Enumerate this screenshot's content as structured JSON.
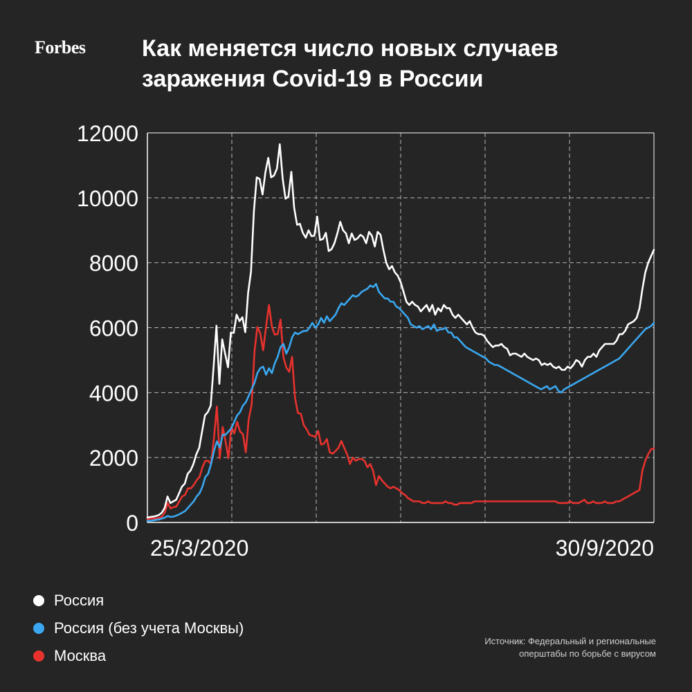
{
  "logo": "Forbes",
  "title": {
    "line1": "Как меняется число новых случаев",
    "line2": "заражения Covid-19 в России"
  },
  "legend": [
    {
      "label": "Россия",
      "color": "#ffffff"
    },
    {
      "label": "Россия (без учета Москвы)",
      "color": "#3aa8f0"
    },
    {
      "label": "Москва",
      "color": "#e8322e"
    }
  ],
  "source": {
    "line1": "Источник: Федеральный и региональные",
    "line2": "оперштабы по борьбе с вирусом"
  },
  "chart_data": {
    "type": "line",
    "ylim": [
      0,
      12000
    ],
    "yticks": [
      "0",
      "2000",
      "4000",
      "6000",
      "8000",
      "10000",
      "12000"
    ],
    "xticks": [
      "25/3/2020",
      "30/9/2020"
    ],
    "x_start": "2020-03-25",
    "x_end": "2020-09-30",
    "grid": true,
    "series": [
      {
        "name": "Россия",
        "color": "#ffffff",
        "values": [
          150,
          170,
          180,
          200,
          230,
          300,
          450,
          800,
          600,
          650,
          700,
          900,
          1100,
          1200,
          1500,
          1600,
          1800,
          2100,
          2300,
          2800,
          3300,
          3400,
          3600,
          4800,
          6060,
          4270,
          5640,
          5200,
          4780,
          5850,
          5840,
          6400,
          6200,
          6320,
          5860,
          7080,
          7720,
          9580,
          10630,
          10580,
          10100,
          10780,
          11230,
          10630,
          10690,
          10900,
          11650,
          10590,
          9970,
          10040,
          10800,
          9690,
          9170,
          9200,
          8920,
          8770,
          9000,
          8820,
          8830,
          9420,
          8700,
          8730,
          8920,
          8360,
          8420,
          8600,
          8900,
          9260,
          9000,
          8900,
          8600,
          8900,
          8700,
          8750,
          8860,
          8800,
          8600,
          8950,
          8830,
          8500,
          8950,
          8860,
          8400,
          8000,
          7800,
          7900,
          7700,
          7600,
          7400,
          7100,
          6800,
          6700,
          6800,
          6700,
          6650,
          6500,
          6600,
          6700,
          6500,
          6700,
          6400,
          6600,
          6500,
          6700,
          6600,
          6600,
          6400,
          6300,
          6400,
          6300,
          6200,
          6100,
          6200,
          6000,
          5850,
          5800,
          5800,
          5750,
          5600,
          5500,
          5400,
          5450,
          5450,
          5500,
          5400,
          5350,
          5150,
          5200,
          5200,
          5150,
          5100,
          5200,
          5100,
          5050,
          5000,
          5050,
          5000,
          4850,
          4900,
          4850,
          4900,
          4800,
          4750,
          4800,
          4700,
          4700,
          4800,
          4750,
          4850,
          5000,
          4950,
          4800,
          5000,
          5100,
          5100,
          5200,
          5100,
          5300,
          5400,
          5500,
          5500,
          5500,
          5500,
          5600,
          5800,
          5800,
          5900,
          6100,
          6150,
          6200,
          6300,
          6600,
          7200,
          7700,
          8000,
          8200,
          8400
        ]
      },
      {
        "name": "Россия (без учета Москвы)",
        "color": "#3aa8f0",
        "values": [
          50,
          50,
          60,
          80,
          90,
          120,
          150,
          200,
          170,
          180,
          210,
          250,
          300,
          350,
          450,
          550,
          650,
          800,
          900,
          1100,
          1400,
          1500,
          1800,
          2200,
          2500,
          2300,
          2700,
          2700,
          2800,
          2900,
          3100,
          3300,
          3400,
          3600,
          3700,
          3900,
          4100,
          4300,
          4600,
          4750,
          4800,
          4550,
          4750,
          4600,
          4900,
          5100,
          5400,
          5500,
          5200,
          5400,
          5700,
          5850,
          5800,
          5850,
          5900,
          5900,
          6000,
          6150,
          6000,
          6100,
          6300,
          6150,
          6350,
          6200,
          6300,
          6400,
          6600,
          6750,
          6700,
          6800,
          6900,
          7000,
          6950,
          7000,
          7100,
          7150,
          7200,
          7300,
          7250,
          7350,
          7100,
          7000,
          6900,
          6900,
          6800,
          6800,
          6650,
          6600,
          6500,
          6400,
          6300,
          6100,
          6050,
          6000,
          6050,
          5950,
          6000,
          6050,
          5950,
          6100,
          5900,
          5950,
          5950,
          6000,
          5850,
          5850,
          5700,
          5700,
          5600,
          5500,
          5400,
          5350,
          5300,
          5250,
          5200,
          5150,
          5100,
          5050,
          4950,
          4900,
          4850,
          4850,
          4800,
          4750,
          4700,
          4650,
          4600,
          4550,
          4500,
          4450,
          4400,
          4350,
          4300,
          4250,
          4200,
          4150,
          4100,
          4150,
          4200,
          4100,
          4150,
          4200,
          4050,
          4000,
          4100,
          4150,
          4200,
          4250,
          4300,
          4350,
          4400,
          4450,
          4500,
          4550,
          4600,
          4650,
          4700,
          4750,
          4800,
          4850,
          4900,
          4950,
          5000,
          5050,
          5150,
          5250,
          5350,
          5450,
          5550,
          5650,
          5750,
          5850,
          5950,
          6000,
          6050,
          6150
        ]
      },
      {
        "name": "Москва",
        "color": "#e8322e",
        "values": [
          100,
          120,
          120,
          130,
          140,
          180,
          300,
          600,
          430,
          470,
          490,
          650,
          800,
          850,
          1050,
          1050,
          1150,
          1300,
          1400,
          1700,
          1900,
          1900,
          1800,
          2600,
          3570,
          1970,
          2940,
          2500,
          1980,
          2950,
          2740,
          3100,
          2800,
          2720,
          2160,
          3180,
          3620,
          5280,
          6020,
          5830,
          5300,
          6030,
          6700,
          6030,
          5790,
          5800,
          6250,
          5090,
          4770,
          4640,
          5100,
          3840,
          3370,
          3350,
          3000,
          2870,
          2700,
          2670,
          2630,
          2820,
          2400,
          2430,
          2570,
          2160,
          2120,
          2200,
          2300,
          2510,
          2300,
          2100,
          1800,
          2000,
          1900,
          1950,
          1960,
          1900,
          1700,
          1800,
          1580,
          1150,
          1430,
          1300,
          1200,
          1100,
          1050,
          1100,
          1050,
          1000,
          900,
          850,
          750,
          700,
          650,
          650,
          650,
          600,
          600,
          650,
          600,
          600,
          600,
          600,
          600,
          650,
          600,
          600,
          550,
          550,
          600,
          600,
          600,
          600,
          600,
          650,
          650,
          650,
          650,
          650,
          650,
          650,
          650,
          650,
          650,
          650,
          650,
          650,
          650,
          650,
          650,
          650,
          650,
          650,
          650,
          650,
          650,
          650,
          650,
          650,
          650,
          650,
          650,
          650,
          600,
          600,
          600,
          600,
          650,
          600,
          600,
          600,
          650,
          700,
          600,
          600,
          650,
          600,
          600,
          600,
          650,
          600,
          600,
          600,
          650,
          650,
          700,
          750,
          800,
          850,
          900,
          950,
          1000,
          1600,
          1900,
          2100,
          2250,
          2280
        ]
      }
    ]
  }
}
